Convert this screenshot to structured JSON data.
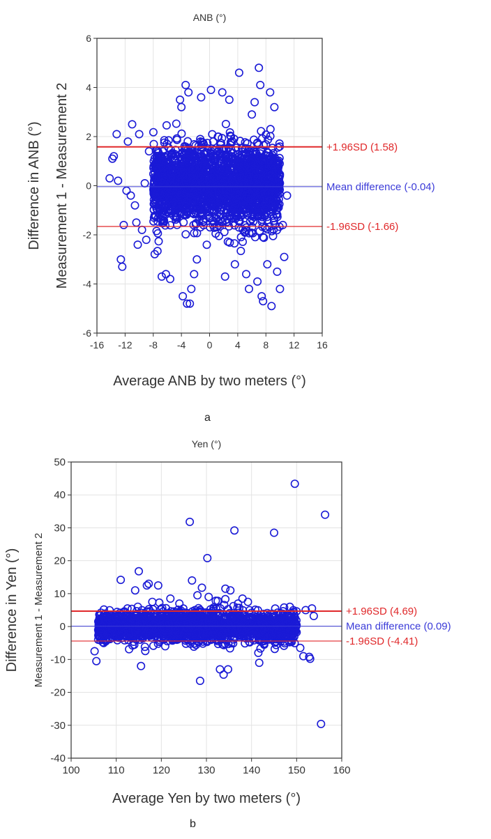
{
  "chart_data": [
    {
      "type": "scatter",
      "title": "ANB (°)",
      "xlabel": "Average ANB by two meters (°)",
      "ylabel": [
        "Difference in ANB (°)",
        "Measurement 1 - Measurement 2"
      ],
      "xlim": [
        -16,
        16
      ],
      "ylim": [
        -6,
        6
      ],
      "xticks": [
        -16,
        -12,
        -8,
        -4,
        0,
        4,
        8,
        12,
        16
      ],
      "yticks": [
        -6,
        -4,
        -2,
        0,
        2,
        4,
        6
      ],
      "grid": true,
      "marker_color": "#1a1ad6",
      "cluster": {
        "x_range": [
          -8,
          10
        ],
        "y_sd": 0.8,
        "point_count": 2200
      },
      "points": [
        [
          -14.2,
          0.3
        ],
        [
          -13.8,
          1.1
        ],
        [
          -13.6,
          1.2
        ],
        [
          -13.2,
          2.1
        ],
        [
          -13.0,
          0.2
        ],
        [
          -12.6,
          -3.0
        ],
        [
          -12.4,
          -3.3
        ],
        [
          -12.2,
          -1.6
        ],
        [
          -11.8,
          -0.2
        ],
        [
          -11.6,
          1.8
        ],
        [
          -11.2,
          -0.4
        ],
        [
          -11.0,
          2.5
        ],
        [
          -10.6,
          -0.8
        ],
        [
          -10.4,
          -1.5
        ],
        [
          -10.0,
          2.1
        ],
        [
          -10.2,
          -2.4
        ],
        [
          -9.6,
          -1.8
        ],
        [
          -9.2,
          0.1
        ],
        [
          -9.0,
          -2.2
        ],
        [
          -8.6,
          1.4
        ],
        [
          -6.8,
          -3.7
        ],
        [
          -6.2,
          -3.6
        ],
        [
          -5.6,
          -3.8
        ],
        [
          -4.2,
          3.5
        ],
        [
          -4.0,
          3.2
        ],
        [
          -3.8,
          -4.5
        ],
        [
          -3.4,
          4.1
        ],
        [
          -3.2,
          -4.8
        ],
        [
          -3.0,
          3.8
        ],
        [
          -2.8,
          -4.8
        ],
        [
          -2.6,
          -4.2
        ],
        [
          -2.2,
          -3.6
        ],
        [
          -1.8,
          -3.0
        ],
        [
          -1.2,
          3.6
        ],
        [
          0.2,
          3.9
        ],
        [
          1.8,
          3.8
        ],
        [
          2.2,
          -3.7
        ],
        [
          2.8,
          3.5
        ],
        [
          3.6,
          -3.2
        ],
        [
          4.2,
          4.6
        ],
        [
          5.2,
          -3.6
        ],
        [
          5.6,
          -4.2
        ],
        [
          6.0,
          2.9
        ],
        [
          6.4,
          3.4
        ],
        [
          6.8,
          -3.9
        ],
        [
          7.0,
          4.8
        ],
        [
          7.2,
          4.1
        ],
        [
          7.4,
          -4.5
        ],
        [
          7.6,
          -4.7
        ],
        [
          8.2,
          -3.2
        ],
        [
          8.6,
          3.8
        ],
        [
          8.8,
          -4.9
        ],
        [
          9.2,
          3.2
        ],
        [
          9.6,
          -3.5
        ],
        [
          10.0,
          -4.2
        ],
        [
          10.4,
          -1.6
        ],
        [
          10.6,
          -2.9
        ],
        [
          11.0,
          -0.4
        ]
      ],
      "reference_lines": [
        {
          "label": "+1.96SD (1.58)",
          "value": 1.58,
          "color": "#e0282a"
        },
        {
          "label": "Mean difference (-0.04)",
          "value": -0.04,
          "color": "#3b3bd8"
        },
        {
          "label": "-1.96SD (-1.66)",
          "value": -1.66,
          "color": "#e0282a"
        }
      ],
      "panel_label": "a"
    },
    {
      "type": "scatter",
      "title": "Yen (°)",
      "xlabel": "Average Yen by two meters (°)",
      "ylabel": [
        "Difference in Yen (°)",
        "Measurement 1 - Measurement 2"
      ],
      "xlim": [
        100,
        160
      ],
      "ylim": [
        -40,
        50
      ],
      "xticks": [
        100,
        110,
        120,
        130,
        140,
        150,
        160
      ],
      "yticks": [
        -40,
        -30,
        -20,
        -10,
        0,
        10,
        20,
        30,
        40,
        50
      ],
      "grid": true,
      "marker_color": "#1a1ad6",
      "cluster": {
        "x_range": [
          106,
          150
        ],
        "y_sd": 2.2,
        "point_count": 2200
      },
      "points": [
        [
          105.2,
          -7.5
        ],
        [
          105.6,
          -10.5
        ],
        [
          106.0,
          -4.0
        ],
        [
          108.5,
          2.0
        ],
        [
          111.0,
          14.2
        ],
        [
          112.5,
          5.5
        ],
        [
          114.2,
          11.0
        ],
        [
          115.0,
          16.8
        ],
        [
          115.5,
          -12.0
        ],
        [
          116.8,
          12.5
        ],
        [
          117.2,
          13.0
        ],
        [
          118.0,
          7.5
        ],
        [
          119.3,
          12.5
        ],
        [
          122.0,
          8.5
        ],
        [
          124.0,
          7.0
        ],
        [
          126.3,
          31.8
        ],
        [
          126.8,
          14.0
        ],
        [
          128.0,
          9.5
        ],
        [
          128.6,
          -16.5
        ],
        [
          129.0,
          11.8
        ],
        [
          130.2,
          20.8
        ],
        [
          130.5,
          9.0
        ],
        [
          132.5,
          7.8
        ],
        [
          133.0,
          -13.0
        ],
        [
          133.8,
          -14.6
        ],
        [
          134.2,
          11.5
        ],
        [
          134.8,
          -13.0
        ],
        [
          135.3,
          11.0
        ],
        [
          136.2,
          29.2
        ],
        [
          137.0,
          7.0
        ],
        [
          138.0,
          8.5
        ],
        [
          139.2,
          7.5
        ],
        [
          141.5,
          -8.0
        ],
        [
          141.7,
          -11.0
        ],
        [
          142.8,
          -5.5
        ],
        [
          145.0,
          28.5
        ],
        [
          146.5,
          -4.5
        ],
        [
          148.5,
          6.0
        ],
        [
          149.6,
          43.4
        ],
        [
          150.8,
          -6.5
        ],
        [
          151.5,
          -9.0
        ],
        [
          152.0,
          5.0
        ],
        [
          152.8,
          -9.2
        ],
        [
          153.0,
          -9.8
        ],
        [
          153.4,
          5.5
        ],
        [
          153.8,
          3.2
        ],
        [
          155.4,
          -29.6
        ],
        [
          156.3,
          34.0
        ]
      ],
      "reference_lines": [
        {
          "label": "+1.96SD (4.69)",
          "value": 4.69,
          "color": "#e0282a"
        },
        {
          "label": "Mean difference (0.09)",
          "value": 0.09,
          "color": "#3b3bd8"
        },
        {
          "label": "-1.96SD (-4.41)",
          "value": -4.41,
          "color": "#e0282a"
        }
      ],
      "panel_label": "b"
    }
  ]
}
